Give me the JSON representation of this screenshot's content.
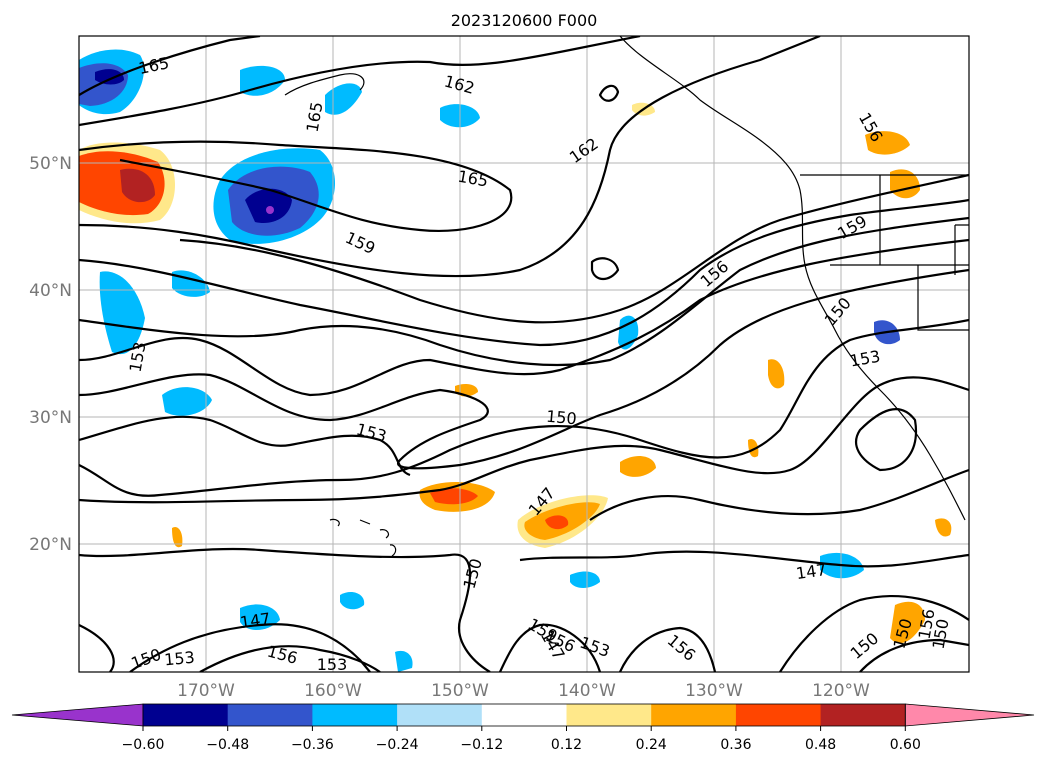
{
  "title": "2023120600 F000",
  "map": {
    "lat_labels": [
      "50°N",
      "40°N",
      "30°N",
      "20°N"
    ],
    "lon_labels": [
      "170°W",
      "160°W",
      "150°W",
      "140°W",
      "130°W",
      "120°W"
    ],
    "contour_labels": [
      "165",
      "165",
      "162",
      "165",
      "162",
      "156",
      "159",
      "159",
      "153",
      "156",
      "150",
      "153",
      "153",
      "150",
      "147",
      "150",
      "147",
      "147",
      "150",
      "156",
      "159",
      "150",
      "153",
      "156",
      "153",
      "153",
      "156",
      "150",
      "147",
      "156",
      "150"
    ]
  },
  "colorbar": {
    "ticks": [
      "−0.60",
      "−0.48",
      "−0.36",
      "−0.24",
      "−0.12",
      "0.12",
      "0.24",
      "0.36",
      "0.48",
      "0.60"
    ],
    "colors": [
      "#9933cc",
      "#000090",
      "#3355cc",
      "#00bbff",
      "#b0e0f8",
      "#ffffff",
      "#ffe88a",
      "#ffa500",
      "#ff4500",
      "#b22222",
      "#ff88aa"
    ]
  }
}
